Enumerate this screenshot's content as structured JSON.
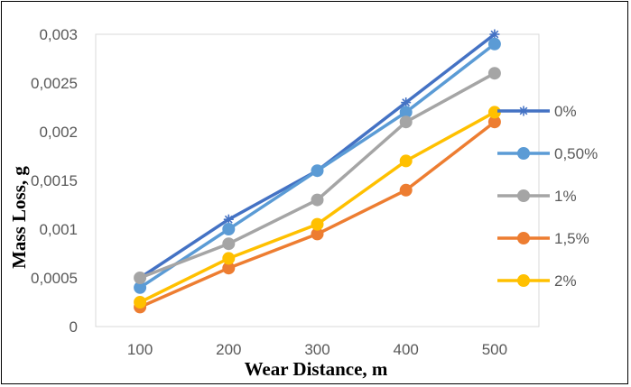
{
  "chart_data": {
    "type": "line",
    "xlabel": "Wear Distance, m",
    "ylabel": "Mass Loss, g",
    "categories": [
      "100",
      "200",
      "300",
      "400",
      "500"
    ],
    "ylim": [
      0,
      0.003
    ],
    "yticks": [
      0,
      0.0005,
      0.001,
      0.0015,
      0.002,
      0.0025,
      0.003
    ],
    "ytick_labels": [
      "0",
      "0,0005",
      "0,001",
      "0,0015",
      "0,002",
      "0,0025",
      "0,003"
    ],
    "grid": false,
    "legend_position": "right",
    "series": [
      {
        "name": "0%",
        "color": "#4472C4",
        "marker": "asterisk",
        "values": [
          0.0005,
          0.0011,
          0.0016,
          0.0023,
          0.003
        ]
      },
      {
        "name": "0,50%",
        "color": "#5B9BD5",
        "marker": "circle",
        "values": [
          0.0004,
          0.001,
          0.0016,
          0.0022,
          0.0029
        ]
      },
      {
        "name": "1%",
        "color": "#A5A5A5",
        "marker": "circle",
        "values": [
          0.0005,
          0.00085,
          0.0013,
          0.0021,
          0.0026
        ]
      },
      {
        "name": "1,5%",
        "color": "#ED7D31",
        "marker": "circle",
        "values": [
          0.0002,
          0.0006,
          0.00095,
          0.0014,
          0.0021
        ]
      },
      {
        "name": "2%",
        "color": "#FFC000",
        "marker": "circle",
        "values": [
          0.00025,
          0.0007,
          0.00105,
          0.0017,
          0.0022
        ]
      }
    ]
  }
}
